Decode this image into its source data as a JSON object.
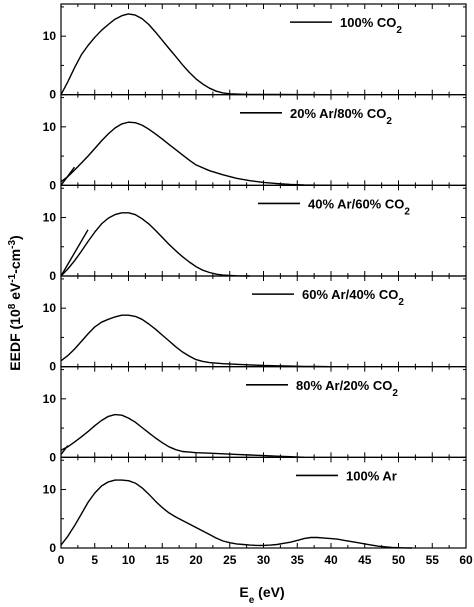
{
  "chart_data": {
    "type": "line",
    "xlabel": "E",
    "xlabel_sub": "e",
    "xlabel_unit": " (eV)",
    "ylabel": "EEDF (10",
    "ylabel_exp": "8",
    "ylabel_mid": " eV",
    "ylabel_exp2": "-1",
    "ylabel_mid2": "-cm",
    "ylabel_exp3": "-3",
    "ylabel_end": ")",
    "xlim": [
      0,
      60
    ],
    "xticks": [
      0,
      5,
      10,
      15,
      20,
      25,
      30,
      35,
      40,
      45,
      50,
      55,
      60
    ],
    "xtick_labels": [
      "0",
      "5",
      "10",
      "15",
      "20",
      "25",
      "30",
      "35",
      "40",
      "45",
      "50",
      "55",
      "60"
    ],
    "ylim": [
      0,
      15.5
    ],
    "yticks": [
      0,
      10
    ],
    "ytick_labels": [
      "0",
      "10"
    ],
    "grid": false,
    "line_color": "#000000",
    "panels": [
      {
        "legend": "100% CO",
        "legend_sub": "2",
        "series": [
          {
            "x": [
              0,
              1,
              2,
              3,
              4,
              5,
              6,
              7,
              8,
              9,
              10,
              11,
              12,
              13,
              14,
              15,
              16,
              17,
              18,
              19,
              20,
              21,
              22,
              23,
              24,
              25,
              26,
              27,
              28,
              29,
              30,
              32,
              35,
              40
            ],
            "y": [
              0,
              2.2,
              4.6,
              6.8,
              8.4,
              9.8,
              11.0,
              12.0,
              12.9,
              13.5,
              13.8,
              13.6,
              13.0,
              12.0,
              10.7,
              9.3,
              7.9,
              6.5,
              5.1,
              3.8,
              2.7,
              1.8,
              1.1,
              0.6,
              0.3,
              0.15,
              0.1,
              0.07,
              0.05,
              0.04,
              0.03,
              0.02,
              0.01,
              0
            ]
          }
        ]
      },
      {
        "legend": "20% Ar/80% CO",
        "legend_sub": "2",
        "series": [
          {
            "x": [
              0,
              1,
              2,
              3,
              4,
              5,
              6,
              7,
              8,
              9,
              10,
              11,
              12,
              13,
              14,
              15,
              16,
              17,
              18,
              19,
              20,
              22,
              24,
              26,
              28,
              30,
              32,
              34,
              36,
              38,
              40
            ],
            "y": [
              0.6,
              1.5,
              2.6,
              3.8,
              5.0,
              6.3,
              7.6,
              8.8,
              9.8,
              10.5,
              10.8,
              10.7,
              10.3,
              9.6,
              8.8,
              7.9,
              7.0,
              6.1,
              5.2,
              4.3,
              3.5,
              2.5,
              1.8,
              1.2,
              0.8,
              0.5,
              0.3,
              0.15,
              0.05,
              0.02,
              0
            ]
          },
          {
            "x": [
              0,
              2
            ],
            "y": [
              0,
              3.1
            ]
          }
        ]
      },
      {
        "legend": "40% Ar/60% CO",
        "legend_sub": "2",
        "series": [
          {
            "x": [
              0,
              1,
              2,
              3,
              4,
              5,
              6,
              7,
              8,
              9,
              10,
              11,
              12,
              13,
              14,
              15,
              16,
              17,
              18,
              19,
              20,
              21,
              22,
              23,
              24,
              25,
              26,
              27,
              28
            ],
            "y": [
              0,
              1.2,
              2.6,
              4.2,
              5.9,
              7.5,
              8.9,
              9.9,
              10.5,
              10.8,
              10.8,
              10.5,
              9.8,
              8.9,
              7.8,
              6.6,
              5.4,
              4.3,
              3.3,
              2.4,
              1.6,
              1.0,
              0.6,
              0.3,
              0.15,
              0.08,
              0.04,
              0.02,
              0
            ]
          },
          {
            "x": [
              0,
              4
            ],
            "y": [
              0,
              7.9
            ]
          }
        ]
      },
      {
        "legend": "60% Ar/40% CO",
        "legend_sub": "2",
        "series": [
          {
            "x": [
              0,
              1,
              2,
              3,
              4,
              5,
              6,
              7,
              8,
              9,
              10,
              11,
              12,
              13,
              14,
              15,
              16,
              17,
              18,
              19,
              20,
              21,
              22,
              24,
              26,
              28,
              30,
              32,
              34,
              36,
              38,
              40
            ],
            "y": [
              1.0,
              1.9,
              3.0,
              4.3,
              5.6,
              6.8,
              7.6,
              8.1,
              8.5,
              8.8,
              8.8,
              8.6,
              8.1,
              7.3,
              6.4,
              5.4,
              4.4,
              3.4,
              2.5,
              1.8,
              1.2,
              0.9,
              0.7,
              0.5,
              0.4,
              0.3,
              0.2,
              0.15,
              0.1,
              0.05,
              0.02,
              0
            ]
          }
        ]
      },
      {
        "legend": "80% Ar/20% CO",
        "legend_sub": "2",
        "series": [
          {
            "x": [
              0,
              1,
              2,
              3,
              4,
              5,
              6,
              7,
              8,
              9,
              10,
              11,
              12,
              13,
              14,
              15,
              16,
              17,
              18,
              19,
              20,
              22,
              24,
              26,
              28,
              30,
              32,
              34,
              36
            ],
            "y": [
              1.2,
              1.8,
              2.6,
              3.5,
              4.4,
              5.4,
              6.3,
              7.0,
              7.3,
              7.2,
              6.7,
              6.0,
              5.1,
              4.2,
              3.3,
              2.5,
              1.8,
              1.3,
              1.0,
              0.9,
              0.8,
              0.7,
              0.6,
              0.5,
              0.4,
              0.3,
              0.2,
              0.1,
              0
            ]
          },
          {
            "x": [
              0,
              1
            ],
            "y": [
              0.5,
              2.0
            ]
          }
        ]
      },
      {
        "legend": "100% Ar",
        "legend_sub": "",
        "series": [
          {
            "x": [
              0,
              1,
              2,
              3,
              4,
              5,
              6,
              7,
              8,
              9,
              10,
              11,
              12,
              13,
              14,
              15,
              16,
              17,
              18,
              19,
              20,
              21,
              22,
              23,
              24,
              25,
              26,
              27,
              28,
              29,
              30,
              31,
              32,
              33,
              34,
              35,
              36,
              37,
              38,
              39,
              40,
              41,
              42,
              43,
              44,
              45,
              46,
              47,
              48,
              49,
              50,
              51,
              52
            ],
            "y": [
              0.5,
              2.0,
              3.8,
              5.8,
              7.8,
              9.4,
              10.6,
              11.3,
              11.6,
              11.6,
              11.5,
              11.1,
              10.3,
              9.2,
              8.0,
              6.9,
              6.0,
              5.3,
              4.7,
              4.1,
              3.5,
              2.9,
              2.3,
              1.7,
              1.2,
              0.9,
              0.7,
              0.6,
              0.5,
              0.45,
              0.45,
              0.5,
              0.6,
              0.8,
              1.0,
              1.3,
              1.6,
              1.8,
              1.8,
              1.7,
              1.6,
              1.5,
              1.3,
              1.1,
              0.9,
              0.7,
              0.5,
              0.3,
              0.2,
              0.1,
              0.05,
              0.02,
              0
            ]
          }
        ]
      }
    ]
  }
}
